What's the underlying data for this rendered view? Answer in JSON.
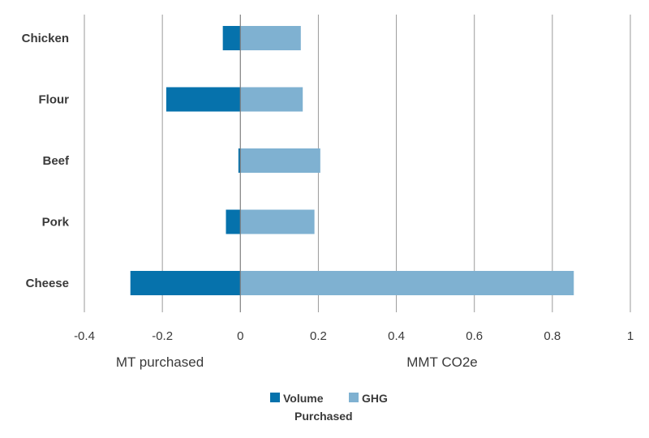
{
  "chart_data": {
    "type": "bar",
    "orientation": "horizontal",
    "stacked": "diverging",
    "categories": [
      "Chicken",
      "Flour",
      "Beef",
      "Pork",
      "Cheese"
    ],
    "series": [
      {
        "name": "Volume Purchased",
        "name_lines": [
          "Volume",
          "Purchased"
        ],
        "color": "#0672AC",
        "values": [
          -0.045,
          -0.19,
          -0.005,
          -0.037,
          -0.282
        ]
      },
      {
        "name": "GHG",
        "name_lines": [
          "GHG"
        ],
        "color": "#7FB1D1",
        "values": [
          0.155,
          0.16,
          0.205,
          0.19,
          0.855
        ]
      }
    ],
    "xlim": [
      -0.4,
      1.0
    ],
    "xticks": [
      -0.4,
      -0.2,
      0,
      0.2,
      0.4,
      0.6,
      0.8,
      1.0
    ],
    "xtick_labels": [
      "-0.4",
      "-0.2",
      "0",
      "0.2",
      "0.4",
      "0.6",
      "0.8",
      "1"
    ],
    "xlabel_left": "MT purchased",
    "xlabel_right": "MMT CO2e",
    "grid": "vertical",
    "legend_position": "bottom-center",
    "gridline_color": "#9a9a9a",
    "axis_color": "#7f7f7f"
  }
}
